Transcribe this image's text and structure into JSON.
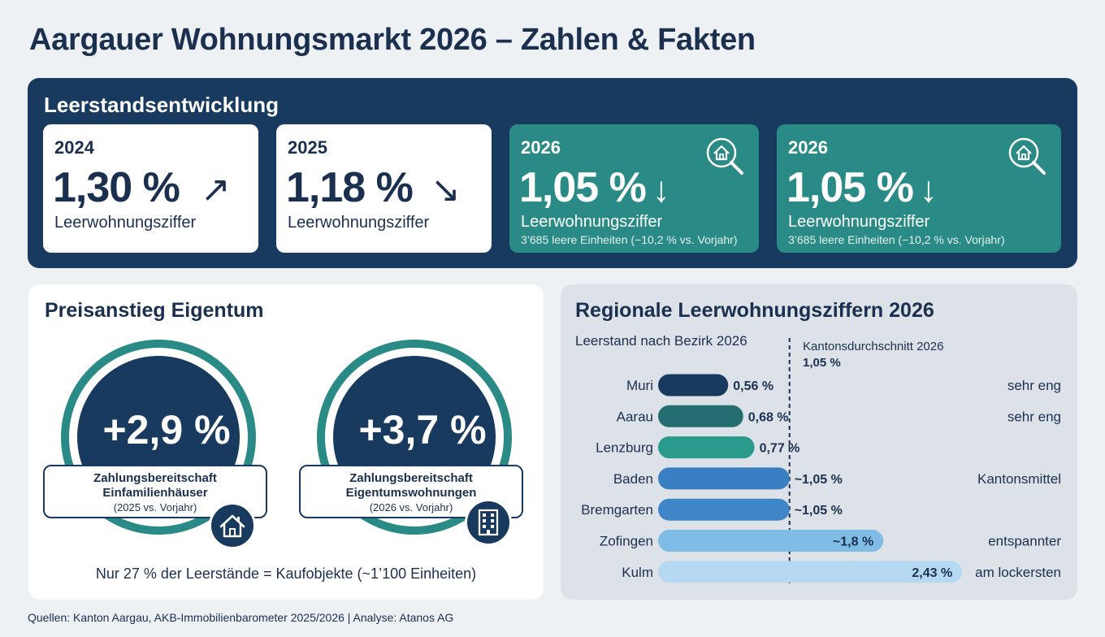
{
  "title": "Aargauer Wohnungsmarkt 2026 – Zahlen & Fakten",
  "leerstand": {
    "section_title": "Leerstandsentwicklung",
    "cards": [
      {
        "year": "2024",
        "value": "1,30 %",
        "arrow": "↗",
        "label": "Leerwohnungsziffer",
        "sub": ""
      },
      {
        "year": "2025",
        "value": "1,18 %",
        "arrow": "↘",
        "label": "Leerwohnungsziffer",
        "sub": ""
      },
      {
        "year": "2026",
        "value": "1,05 %",
        "arrow": "↓",
        "label": "Leerwohnungsziffer",
        "sub": "3’685 leere Einheiten (−10,2 % vs. Vorjahr)",
        "icon": "house-search-icon"
      },
      {
        "year": "2026",
        "value": "1,05 %",
        "arrow": "↓",
        "label": "Leerwohnungsziffer",
        "sub": "3’685 leere Einheiten (−10,2 % vs. Vorjahr)",
        "icon": "house-search-icon"
      }
    ]
  },
  "preis": {
    "section_title": "Preisanstieg Eigentum",
    "items": [
      {
        "value": "+2,9 %",
        "line1": "Zahlungsbereitschaft",
        "line2": "Einfamilienhäuser",
        "line3": "(2025 vs. Vorjahr)",
        "icon": "house-icon"
      },
      {
        "value": "+3,7 %",
        "line1": "Zahlungsbereitschaft",
        "line2": "Eigentumswohnungen",
        "line3": "(2026 vs. Vorjahr)",
        "icon": "apartment-building-icon"
      }
    ],
    "note": "Nur 27 % der Leerstände = Kaufobjekte (~1’100 Einheiten)"
  },
  "regional": {
    "section_title": "Regionale Leerwohnungsziffern 2026",
    "subtitle": "Leerstand nach Bezirk 2026",
    "ref_label": "Kantonsdurchschnitt 2026",
    "ref_value_label": "1,05 %"
  },
  "chart_data": {
    "type": "bar",
    "orientation": "horizontal",
    "categories": [
      "Muri",
      "Aarau",
      "Lenzburg",
      "Baden",
      "Bremgarten",
      "Zofingen",
      "Kulm"
    ],
    "values": [
      0.56,
      0.68,
      0.77,
      1.05,
      1.05,
      1.8,
      2.43
    ],
    "value_labels": [
      "0,56 %",
      "0,68 %",
      "0,77 %",
      "~1,05 %",
      "~1,05 %",
      "~1,8 %",
      "2,43 %"
    ],
    "assessments": [
      "sehr eng",
      "sehr eng",
      "",
      "Kantonsmittel",
      "",
      "entspannter",
      "am lockersten"
    ],
    "colors": [
      "#183a5f",
      "#246e71",
      "#2a9a8c",
      "#3a7fc3",
      "#3f86c8",
      "#7fbce6",
      "#b5d9f2"
    ],
    "reference_line": {
      "value": 1.05,
      "label": "Kantonsdurchschnitt 2026",
      "value_label": "1,05 %"
    },
    "xlim": [
      0,
      2.6
    ],
    "unit": "%"
  },
  "footer": "Quellen: Kanton Aargau, AKB-Immobilienbarometer 2025/2026 | Analyse: Atanos AG"
}
